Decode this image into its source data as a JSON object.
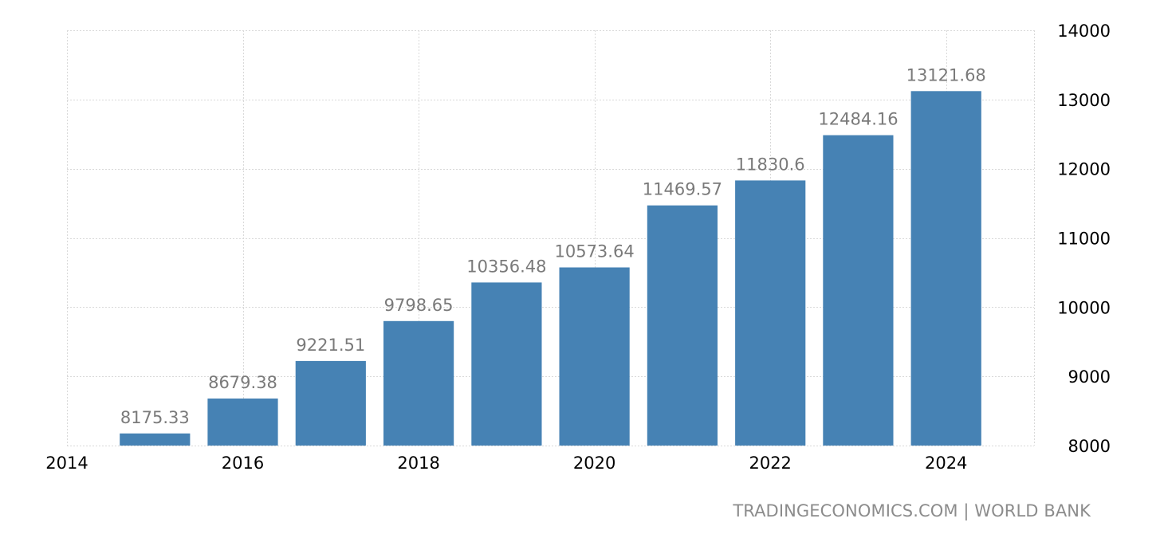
{
  "source": {
    "text": "TRADINGECONOMICS.COM | WORLD BANK"
  },
  "chart_data": {
    "type": "bar",
    "categories": [
      "2015",
      "2016",
      "2017",
      "2018",
      "2019",
      "2020",
      "2021",
      "2022",
      "2023",
      "2024"
    ],
    "values": [
      8175.33,
      8679.38,
      9221.51,
      9798.65,
      10356.48,
      10573.64,
      11469.57,
      11830.6,
      12484.16,
      13121.68
    ],
    "data_labels": [
      "8175.33",
      "8679.38",
      "9221.51",
      "9798.65",
      "10356.48",
      "10573.64",
      "11469.57",
      "11830.6",
      "12484.16",
      "13121.68"
    ],
    "x_ticks": [
      2014,
      2016,
      2018,
      2020,
      2022,
      2024
    ],
    "x_tick_labels": [
      "2014",
      "2016",
      "2018",
      "2020",
      "2022",
      "2024"
    ],
    "xlim": [
      2014,
      2025
    ],
    "y_ticks": [
      8000,
      9000,
      10000,
      11000,
      12000,
      13000,
      14000
    ],
    "y_tick_labels": [
      "8000",
      "9000",
      "10000",
      "11000",
      "12000",
      "13000",
      "14000"
    ],
    "ylim": [
      8000,
      14000
    ],
    "y_axis_side": "right",
    "grid": true,
    "title": "",
    "xlabel": "",
    "ylabel": "",
    "colors": {
      "bar": "#4682b4",
      "data_label": "#7a7a7a",
      "grid": "#d9d9d9",
      "tick_label": "#000000"
    }
  }
}
